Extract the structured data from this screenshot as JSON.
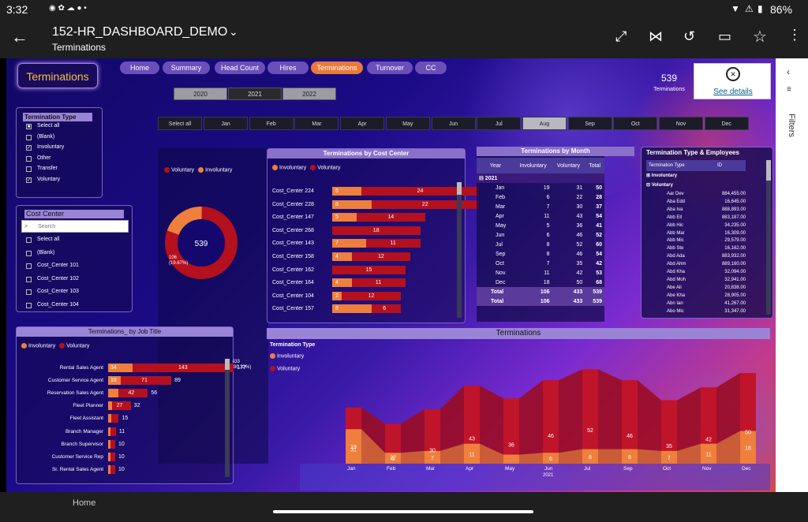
{
  "status": {
    "time": "3:32",
    "battery": "86%"
  },
  "appbar": {
    "report_name": "152-HR_DASHBOARD_DEMO",
    "page_name": "Terminations"
  },
  "filters_label": "Filters",
  "nav_home": "Home",
  "page_title": "Terminations",
  "nav_pills": [
    {
      "label": "Home",
      "active": false
    },
    {
      "label": "Summary",
      "active": false
    },
    {
      "label": "Head Count",
      "active": false
    },
    {
      "label": "Hires",
      "active": false
    },
    {
      "label": "Terminations",
      "active": true
    },
    {
      "label": "Turnover",
      "active": false
    },
    {
      "label": "CC",
      "active": false
    }
  ],
  "years": [
    {
      "label": "2020",
      "active": false
    },
    {
      "label": "2021",
      "active": true
    },
    {
      "label": "2022",
      "active": false
    }
  ],
  "months": [
    {
      "label": "Select all",
      "active": false
    },
    {
      "label": "Jan",
      "active": false
    },
    {
      "label": "Feb",
      "active": false
    },
    {
      "label": "Mar",
      "active": false
    },
    {
      "label": "Apr",
      "active": false
    },
    {
      "label": "May",
      "active": false
    },
    {
      "label": "Jun",
      "active": false
    },
    {
      "label": "Jul",
      "active": false
    },
    {
      "label": "Aug",
      "active": true
    },
    {
      "label": "Sep",
      "active": false
    },
    {
      "label": "Oct",
      "active": false
    },
    {
      "label": "Nov",
      "active": false
    },
    {
      "label": "Dec",
      "active": false
    }
  ],
  "kpi": {
    "value": "539",
    "label": "Terminations"
  },
  "see_details": "See details",
  "termination_type": {
    "title": "Termination Type",
    "items": [
      {
        "label": "Select all",
        "state": "partial"
      },
      {
        "label": "(Blank)",
        "state": "off"
      },
      {
        "label": "Involuntary",
        "state": "on"
      },
      {
        "label": "Other",
        "state": "off"
      },
      {
        "label": "Transfer",
        "state": "off"
      },
      {
        "label": "Voluntary",
        "state": "on"
      }
    ]
  },
  "cost_center_slicer": {
    "title": "Cost Center",
    "search_placeholder": "Search",
    "items": [
      "Select all",
      "(Blank)",
      "Cost_Center 101",
      "Cost_Center 102",
      "Cost_Center 103",
      "Cost_Center 104"
    ]
  },
  "donut": {
    "legend": [
      "Voluntary",
      "Involuntary"
    ],
    "center": "539",
    "involuntary_label": "106\n(19.67%)",
    "voluntary_label": "433\n(80.33%)",
    "involuntary_count": 106,
    "voluntary_count": 433,
    "colors": {
      "involuntary": "#ee7f3c",
      "voluntary": "#b4101e"
    }
  },
  "cost_center_chart": {
    "title": "Terminations by Cost Center",
    "legend": [
      "Involuntary",
      "Voluntary"
    ],
    "rows": [
      {
        "name": "Cost_Center 224",
        "inv": 6,
        "vol": 24
      },
      {
        "name": "Cost_Center 228",
        "inv": 8,
        "vol": 22
      },
      {
        "name": "Cost_Center 147",
        "inv": 5,
        "vol": 14
      },
      {
        "name": "Cost_Center 268",
        "inv": null,
        "vol": 18
      },
      {
        "name": "Cost_Center 143",
        "inv": 7,
        "vol": 11
      },
      {
        "name": "Cost_Center 158",
        "inv": 4,
        "vol": 12
      },
      {
        "name": "Cost_Center 162",
        "inv": null,
        "vol": 15
      },
      {
        "name": "Cost_Center 164",
        "inv": 4,
        "vol": 11
      },
      {
        "name": "Cost_Center 104",
        "inv": 2,
        "vol": 12
      },
      {
        "name": "Cost_Center 157",
        "inv": 8,
        "vol": 6
      }
    ]
  },
  "month_table": {
    "title": "Terminations by Month",
    "headers": [
      "Year",
      "Involuntary",
      "Voluntary",
      "Total"
    ],
    "group": "2021",
    "rows": [
      [
        "Jan",
        "19",
        "31",
        "50"
      ],
      [
        "Feb",
        "6",
        "22",
        "28"
      ],
      [
        "Mar",
        "7",
        "30",
        "37"
      ],
      [
        "Apr",
        "11",
        "43",
        "54"
      ],
      [
        "May",
        "5",
        "36",
        "41"
      ],
      [
        "Jun",
        "6",
        "46",
        "52"
      ],
      [
        "Jul",
        "8",
        "52",
        "60"
      ],
      [
        "Sep",
        "8",
        "46",
        "54"
      ],
      [
        "Oct",
        "7",
        "35",
        "42"
      ],
      [
        "Nov",
        "11",
        "42",
        "53"
      ],
      [
        "Dec",
        "18",
        "50",
        "68"
      ]
    ],
    "subtotal": [
      "Total",
      "106",
      "433",
      "539"
    ],
    "total": [
      "Total",
      "106",
      "433",
      "539"
    ]
  },
  "type_employees": {
    "title": "Termination Type & Employees",
    "headers": [
      "Termination Type",
      "ID"
    ],
    "groups": [
      "Involuntary",
      "Voluntary"
    ],
    "rows": [
      [
        "Aar Dev",
        "884,455.00"
      ],
      [
        "Aba Edd",
        "16,645.00"
      ],
      [
        "Aba Iva",
        "888,893.00"
      ],
      [
        "Abb Ell",
        "883,187.00"
      ],
      [
        "Abb Hic",
        "34,235.00"
      ],
      [
        "Abb Mar",
        "16,309.00"
      ],
      [
        "Abb Mic",
        "29,579.00"
      ],
      [
        "Abb Ste",
        "16,162.00"
      ],
      [
        "Abd Ada",
        "883,932.00"
      ],
      [
        "Abd Ahm",
        "889,160.00"
      ],
      [
        "Abd Kha",
        "32,094.00"
      ],
      [
        "Abd Moh",
        "32,941.00"
      ],
      [
        "Abe Ali",
        "20,838.00"
      ],
      [
        "Abe Kha",
        "28,905.00"
      ],
      [
        "Abn Ian",
        "41,267.00"
      ],
      [
        "Abo Mic",
        "31,347.00"
      ]
    ]
  },
  "job_title_chart": {
    "title": "Terminations_ by Job Title",
    "legend": [
      "Involuntary",
      "Voluntary"
    ],
    "rows": [
      {
        "name": "Rental Sales Agent",
        "inv": 34,
        "vol": 143,
        "total": 177
      },
      {
        "name": "Customer Service Agent",
        "inv": 18,
        "vol": 71,
        "total": 89
      },
      {
        "name": "Reservation Sales Agent",
        "inv": null,
        "vol": 42,
        "total": 56
      },
      {
        "name": "Fleet Planner",
        "inv": null,
        "vol": 27,
        "total": 32
      },
      {
        "name": "Fleet Assistant",
        "inv": null,
        "vol": null,
        "total": 15
      },
      {
        "name": "Branch Manager",
        "inv": null,
        "vol": null,
        "total": 11
      },
      {
        "name": "Branch Supervisor",
        "inv": null,
        "vol": null,
        "total": 10
      },
      {
        "name": "Customer Service Rep",
        "inv": null,
        "vol": null,
        "total": 10
      },
      {
        "name": "Sr. Rental Sales Agent",
        "inv": null,
        "vol": null,
        "total": 10
      }
    ]
  },
  "chart_data": {
    "type": "area",
    "title": "Terminations",
    "legend_title": "Termination Type",
    "categories": [
      "Jan",
      "Feb",
      "Mar",
      "Apr",
      "May",
      "Jun",
      "Jul",
      "Sep",
      "Oct",
      "Nov",
      "Dec"
    ],
    "year_label": "2021",
    "series": [
      {
        "name": "Involuntary",
        "values": [
          19,
          6,
          7,
          11,
          5,
          6,
          8,
          8,
          7,
          11,
          18
        ],
        "color": "#ee7f3c"
      },
      {
        "name": "Voluntary",
        "values": [
          31,
          22,
          30,
          43,
          36,
          46,
          52,
          46,
          35,
          42,
          50
        ],
        "color": "#b4101e"
      }
    ],
    "value_labels_inv": [
      "19",
      "6",
      "7",
      "11",
      "",
      "6",
      "8",
      "8",
      "7",
      "11",
      "18"
    ]
  }
}
